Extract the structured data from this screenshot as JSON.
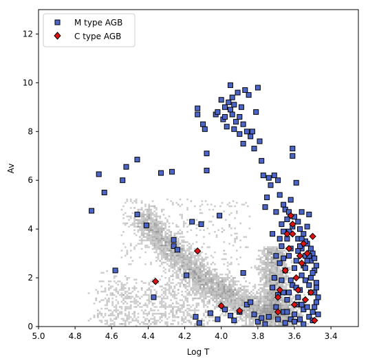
{
  "chart_data": {
    "type": "scatter",
    "xlabel": "Log T",
    "ylabel": "Av",
    "xlim": [
      5.0,
      3.25
    ],
    "ylim": [
      0,
      13
    ],
    "x_ticks": [
      "5.0",
      "4.8",
      "4.6",
      "4.4",
      "4.2",
      "4.0",
      "3.8",
      "3.6",
      "3.4"
    ],
    "y_ticks": [
      "0",
      "2",
      "4",
      "6",
      "8",
      "10",
      "12"
    ],
    "legend_position": "upper-left",
    "background": {
      "name": "density",
      "color": "#a0a0a0",
      "note_regions": "grey 2D histogram of underlying population"
    },
    "series": [
      {
        "name": "M type AGB",
        "marker": "square",
        "color": "#4c66c8",
        "edge": "#000000",
        "points": [
          [
            4.71,
            4.75
          ],
          [
            4.67,
            6.25
          ],
          [
            4.64,
            5.5
          ],
          [
            4.58,
            2.3
          ],
          [
            4.54,
            6.0
          ],
          [
            4.52,
            6.55
          ],
          [
            4.46,
            6.85
          ],
          [
            4.46,
            4.6
          ],
          [
            4.41,
            4.15
          ],
          [
            4.37,
            1.2
          ],
          [
            4.33,
            6.3
          ],
          [
            4.27,
            6.35
          ],
          [
            4.26,
            3.3
          ],
          [
            4.26,
            3.55
          ],
          [
            4.24,
            3.15
          ],
          [
            4.19,
            2.1
          ],
          [
            4.16,
            4.3
          ],
          [
            4.14,
            0.4
          ],
          [
            4.13,
            8.95
          ],
          [
            4.13,
            8.7
          ],
          [
            4.12,
            0.15
          ],
          [
            4.11,
            4.2
          ],
          [
            4.1,
            8.3
          ],
          [
            4.09,
            8.1
          ],
          [
            4.08,
            7.1
          ],
          [
            4.08,
            6.4
          ],
          [
            4.03,
            8.7
          ],
          [
            4.02,
            8.8
          ],
          [
            4.01,
            4.55
          ],
          [
            4.0,
            9.3
          ],
          [
            3.99,
            8.5
          ],
          [
            3.98,
            9.0
          ],
          [
            3.98,
            8.6
          ],
          [
            3.97,
            8.2
          ],
          [
            3.96,
            9.2
          ],
          [
            3.95,
            8.9
          ],
          [
            3.95,
            9.9
          ],
          [
            3.94,
            9.4
          ],
          [
            3.94,
            8.7
          ],
          [
            3.93,
            8.1
          ],
          [
            3.93,
            9.1
          ],
          [
            3.92,
            8.4
          ],
          [
            3.91,
            9.6
          ],
          [
            3.9,
            8.6
          ],
          [
            3.9,
            7.9
          ],
          [
            3.89,
            9.0
          ],
          [
            3.88,
            8.3
          ],
          [
            3.88,
            7.5
          ],
          [
            3.87,
            9.7
          ],
          [
            3.86,
            8.0
          ],
          [
            3.85,
            9.5
          ],
          [
            3.84,
            7.8
          ],
          [
            3.83,
            8.0
          ],
          [
            3.82,
            7.3
          ],
          [
            3.81,
            8.8
          ],
          [
            3.8,
            9.8
          ],
          [
            3.79,
            7.6
          ],
          [
            3.78,
            6.8
          ],
          [
            3.77,
            6.2
          ],
          [
            3.76,
            4.9
          ],
          [
            3.75,
            5.3
          ],
          [
            3.74,
            6.1
          ],
          [
            3.73,
            5.8
          ],
          [
            3.72,
            3.8
          ],
          [
            3.71,
            6.2
          ],
          [
            3.7,
            4.7
          ],
          [
            3.69,
            6.0
          ],
          [
            3.68,
            5.4
          ],
          [
            3.67,
            4.2
          ],
          [
            3.66,
            5.0
          ],
          [
            3.65,
            4.8
          ],
          [
            3.64,
            4.4
          ],
          [
            3.63,
            3.9
          ],
          [
            3.62,
            5.2
          ],
          [
            3.61,
            7.3
          ],
          [
            3.61,
            7.0
          ],
          [
            3.6,
            4.5
          ],
          [
            3.59,
            5.9
          ],
          [
            3.58,
            3.6
          ],
          [
            3.57,
            4.0
          ],
          [
            3.56,
            3.2
          ],
          [
            3.55,
            3.8
          ],
          [
            3.54,
            2.9
          ],
          [
            3.53,
            3.4
          ],
          [
            3.52,
            4.6
          ],
          [
            3.51,
            2.7
          ],
          [
            3.5,
            3.0
          ],
          [
            3.49,
            2.3
          ],
          [
            3.48,
            1.8
          ],
          [
            3.47,
            1.2
          ],
          [
            4.06,
            0.55
          ],
          [
            4.02,
            0.3
          ],
          [
            3.98,
            0.7
          ],
          [
            3.95,
            0.45
          ],
          [
            3.93,
            0.25
          ],
          [
            3.9,
            0.6
          ],
          [
            3.88,
            2.2
          ],
          [
            3.86,
            0.9
          ],
          [
            3.84,
            1.0
          ],
          [
            3.82,
            0.5
          ],
          [
            3.8,
            0.2
          ],
          [
            3.78,
            0.35
          ],
          [
            3.76,
            0.1
          ],
          [
            3.74,
            0.4
          ],
          [
            3.72,
            1.6
          ],
          [
            3.71,
            2.0
          ],
          [
            3.7,
            0.8
          ],
          [
            3.69,
            1.3
          ],
          [
            3.68,
            2.6
          ],
          [
            3.67,
            1.9
          ],
          [
            3.66,
            0.6
          ],
          [
            3.65,
            2.3
          ],
          [
            3.64,
            1.1
          ],
          [
            3.63,
            2.9
          ],
          [
            3.62,
            0.3
          ],
          [
            3.61,
            1.7
          ],
          [
            3.6,
            2.4
          ],
          [
            3.59,
            0.9
          ],
          [
            3.58,
            3.1
          ],
          [
            3.57,
            1.5
          ],
          [
            3.56,
            2.1
          ],
          [
            3.55,
            0.7
          ],
          [
            3.54,
            1.9
          ],
          [
            3.53,
            2.7
          ],
          [
            3.52,
            0.4
          ],
          [
            3.51,
            1.4
          ],
          [
            3.5,
            2.2
          ],
          [
            3.49,
            0.8
          ],
          [
            3.48,
            1.6
          ],
          [
            3.47,
            0.5
          ],
          [
            3.67,
            3.3
          ],
          [
            3.66,
            2.8
          ],
          [
            3.64,
            3.6
          ],
          [
            3.63,
            1.4
          ],
          [
            3.62,
            3.2
          ],
          [
            3.6,
            0.5
          ],
          [
            3.59,
            2.7
          ],
          [
            3.57,
            3.3
          ],
          [
            3.56,
            0.9
          ],
          [
            3.55,
            2.5
          ],
          [
            3.54,
            3.5
          ],
          [
            3.52,
            1.7
          ],
          [
            3.51,
            3.2
          ],
          [
            3.5,
            0.6
          ],
          [
            3.49,
            2.8
          ],
          [
            3.48,
            1.0
          ],
          [
            3.61,
            4.1
          ],
          [
            3.63,
            4.7
          ],
          [
            3.58,
            4.3
          ],
          [
            3.56,
            4.7
          ],
          [
            3.53,
            4.1
          ],
          [
            3.66,
            3.9
          ],
          [
            3.68,
            3.6
          ],
          [
            3.7,
            2.9
          ],
          [
            3.69,
            0.3
          ],
          [
            3.65,
            0.15
          ],
          [
            3.6,
            0.2
          ],
          [
            3.55,
            0.1
          ],
          [
            3.5,
            0.25
          ],
          [
            3.58,
            1.2
          ],
          [
            3.62,
            1.9
          ],
          [
            3.54,
            2.4
          ],
          [
            3.51,
            2.0
          ],
          [
            3.57,
            0.3
          ],
          [
            3.53,
            0.8
          ],
          [
            3.49,
            1.4
          ],
          [
            3.64,
            0.6
          ],
          [
            3.59,
            1.6
          ],
          [
            3.66,
            1.4
          ],
          [
            3.52,
            2.9
          ],
          [
            3.56,
            3.6
          ],
          [
            3.48,
            2.5
          ]
        ]
      },
      {
        "name": "C type AGB",
        "marker": "diamond",
        "color": "#dd1111",
        "edge": "#000000",
        "points": [
          [
            4.36,
            1.85
          ],
          [
            4.13,
            3.1
          ],
          [
            4.0,
            0.85
          ],
          [
            3.9,
            0.65
          ],
          [
            3.69,
            0.6
          ],
          [
            3.69,
            1.2
          ],
          [
            3.68,
            1.5
          ],
          [
            3.65,
            2.3
          ],
          [
            3.64,
            3.8
          ],
          [
            3.63,
            3.2
          ],
          [
            3.62,
            4.55
          ],
          [
            3.61,
            4.2
          ],
          [
            3.61,
            3.8
          ],
          [
            3.6,
            0.9
          ],
          [
            3.59,
            2.0
          ],
          [
            3.58,
            1.5
          ],
          [
            3.57,
            2.9
          ],
          [
            3.56,
            2.6
          ],
          [
            3.55,
            3.4
          ],
          [
            3.54,
            1.1
          ],
          [
            3.53,
            3.0
          ],
          [
            3.51,
            1.4
          ],
          [
            3.5,
            3.7
          ],
          [
            3.49,
            0.25
          ]
        ]
      }
    ]
  }
}
